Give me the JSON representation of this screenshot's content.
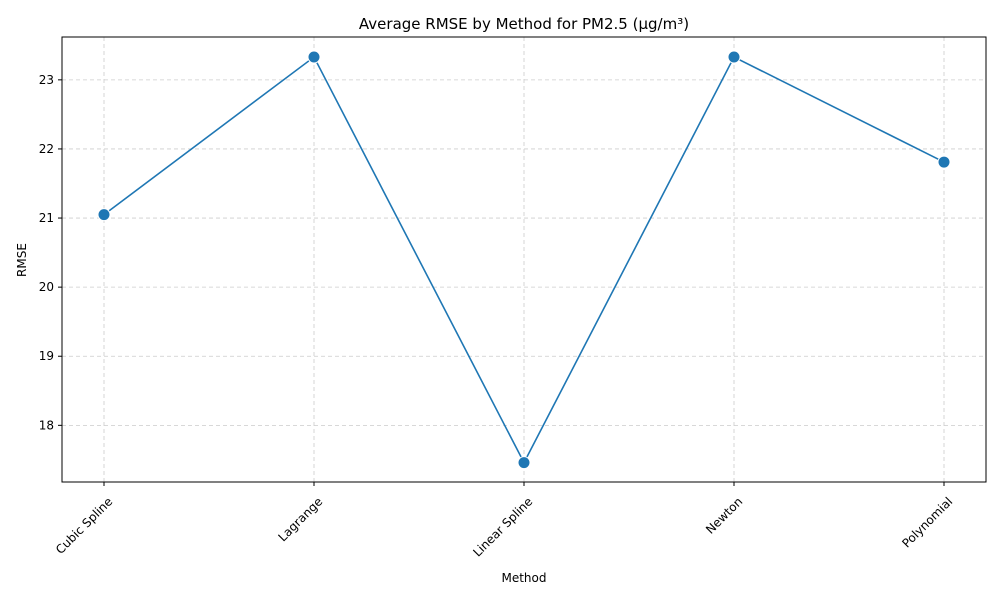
{
  "chart_data": {
    "type": "line",
    "title": "Average RMSE by Method for PM2.5 (µg/m³)",
    "xlabel": "Method",
    "ylabel": "RMSE",
    "categories": [
      "Cubic Spline",
      "Lagrange",
      "Linear Spline",
      "Newton",
      "Polynomial"
    ],
    "series": [
      {
        "values": [
          21.05,
          23.33,
          17.46,
          23.33,
          21.81
        ]
      }
    ],
    "ylim": [
      17.18,
      23.62
    ],
    "yticks": [
      "18",
      "19",
      "20",
      "21",
      "22",
      "23"
    ],
    "grid": true,
    "legend": "none",
    "colors": {
      "series": "#1f77b4",
      "grid": "#cccccc"
    }
  }
}
